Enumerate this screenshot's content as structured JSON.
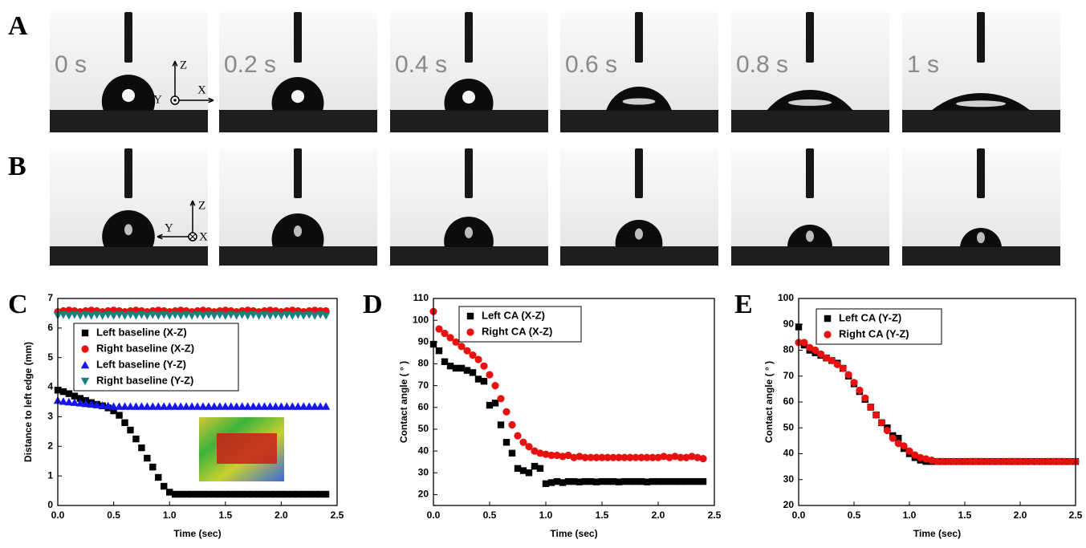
{
  "panel_labels": [
    "A",
    "B",
    "C",
    "D",
    "E"
  ],
  "photos": {
    "times": [
      "0 s",
      "0.2 s",
      "0.4 s",
      "0.6 s",
      "0.8 s",
      "1 s"
    ],
    "axes_a": [
      "Z",
      "X",
      "Y"
    ],
    "axes_b": [
      "Z",
      "Y",
      "X"
    ]
  },
  "chart_data": [
    {
      "type": "scatter",
      "x_label": "Time (sec)",
      "y_label": "Distance to left edge (mm)",
      "xlim": [
        0,
        2.5
      ],
      "ylim": [
        0,
        7
      ],
      "xticks": [
        {
          "value": 0,
          "label": "0.0"
        },
        0.5,
        {
          "value": 1,
          "label": "1.0"
        },
        1.5,
        {
          "value": 2,
          "label": "2.0"
        },
        2.5
      ],
      "yticks": [
        0,
        1,
        2,
        3,
        4,
        5,
        6,
        7
      ],
      "legend": "upper left",
      "x": [
        0,
        0.05,
        0.1,
        0.15,
        0.2,
        0.25,
        0.3,
        0.35,
        0.4,
        0.45,
        0.5,
        0.55,
        0.6,
        0.65,
        0.7,
        0.75,
        0.8,
        0.85,
        0.9,
        0.95,
        1,
        1.05,
        1.1,
        1.15,
        1.2,
        1.25,
        1.3,
        1.35,
        1.4,
        1.45,
        1.5,
        1.55,
        1.6,
        1.65,
        1.7,
        1.75,
        1.8,
        1.85,
        1.9,
        1.95,
        2,
        2.05,
        2.1,
        2.15,
        2.2,
        2.25,
        2.3,
        2.35,
        2.4
      ],
      "series": [
        {
          "name": "Left baseline (X-Z)",
          "color": "#000000",
          "marker": "square",
          "values": [
            3.9,
            3.85,
            3.78,
            3.7,
            3.62,
            3.55,
            3.48,
            3.42,
            3.37,
            3.3,
            3.2,
            3.05,
            2.8,
            2.55,
            2.25,
            1.95,
            1.6,
            1.3,
            0.95,
            0.65,
            0.45,
            0.38,
            0.38,
            0.38,
            0.38,
            0.38,
            0.38,
            0.38,
            0.38,
            0.38,
            0.38,
            0.38,
            0.38,
            0.38,
            0.38,
            0.38,
            0.38,
            0.38,
            0.38,
            0.38,
            0.38,
            0.38,
            0.38,
            0.38,
            0.38,
            0.38,
            0.38,
            0.38,
            0.38
          ]
        },
        {
          "name": "Right baseline (X-Z)",
          "color": "#e8110f",
          "marker": "circle",
          "values": [
            6.55,
            6.58,
            6.6,
            6.58,
            6.55,
            6.58,
            6.6,
            6.58,
            6.55,
            6.58,
            6.6,
            6.58,
            6.55,
            6.58,
            6.6,
            6.58,
            6.55,
            6.58,
            6.6,
            6.58,
            6.55,
            6.58,
            6.6,
            6.58,
            6.55,
            6.58,
            6.6,
            6.58,
            6.55,
            6.58,
            6.6,
            6.58,
            6.55,
            6.58,
            6.6,
            6.58,
            6.55,
            6.58,
            6.6,
            6.58,
            6.55,
            6.58,
            6.6,
            6.58,
            6.55,
            6.58,
            6.6,
            6.58,
            6.58
          ]
        },
        {
          "name": "Left baseline (Y-Z)",
          "color": "#1515f0",
          "marker": "triangle-up",
          "values": [
            3.55,
            3.52,
            3.5,
            3.48,
            3.46,
            3.44,
            3.42,
            3.4,
            3.38,
            3.37,
            3.35,
            3.35,
            3.35,
            3.35,
            3.35,
            3.35,
            3.35,
            3.35,
            3.35,
            3.35,
            3.35,
            3.35,
            3.35,
            3.35,
            3.35,
            3.35,
            3.35,
            3.35,
            3.35,
            3.35,
            3.35,
            3.35,
            3.35,
            3.35,
            3.35,
            3.35,
            3.35,
            3.35,
            3.35,
            3.35,
            3.35,
            3.35,
            3.35,
            3.35,
            3.35,
            3.35,
            3.35,
            3.35,
            3.35
          ]
        },
        {
          "name": "Right baseline (Y-Z)",
          "color": "#1a8080",
          "marker": "triangle-down",
          "values": [
            6.42,
            6.45,
            6.42,
            6.45,
            6.42,
            6.45,
            6.42,
            6.45,
            6.42,
            6.45,
            6.42,
            6.45,
            6.42,
            6.45,
            6.42,
            6.45,
            6.42,
            6.45,
            6.42,
            6.45,
            6.42,
            6.45,
            6.42,
            6.45,
            6.42,
            6.45,
            6.42,
            6.45,
            6.42,
            6.45,
            6.42,
            6.45,
            6.42,
            6.45,
            6.42,
            6.45,
            6.42,
            6.45,
            6.42,
            6.45,
            6.42,
            6.45,
            6.42,
            6.45,
            6.42,
            6.45,
            6.42,
            6.45,
            6.42
          ]
        }
      ]
    },
    {
      "type": "scatter",
      "x_label": "Time (sec)",
      "y_label": "Contact angle ( ° )",
      "xlim": [
        0,
        2.5
      ],
      "ylim": [
        15,
        110
      ],
      "xticks": [
        {
          "value": 0,
          "label": "0.0"
        },
        0.5,
        {
          "value": 1,
          "label": "1.0"
        },
        1.5,
        {
          "value": 2,
          "label": "2.0"
        },
        2.5
      ],
      "yticks": [
        20,
        30,
        40,
        50,
        60,
        70,
        80,
        90,
        100,
        110
      ],
      "legend": "upper left",
      "x": [
        0,
        0.05,
        0.1,
        0.15,
        0.2,
        0.25,
        0.3,
        0.35,
        0.4,
        0.45,
        0.5,
        0.55,
        0.6,
        0.65,
        0.7,
        0.75,
        0.8,
        0.85,
        0.9,
        0.95,
        1,
        1.05,
        1.1,
        1.15,
        1.2,
        1.25,
        1.3,
        1.35,
        1.4,
        1.45,
        1.5,
        1.55,
        1.6,
        1.65,
        1.7,
        1.75,
        1.8,
        1.85,
        1.9,
        1.95,
        2,
        2.05,
        2.1,
        2.15,
        2.2,
        2.25,
        2.3,
        2.35,
        2.4
      ],
      "series": [
        {
          "name": "Left CA (X-Z)",
          "color": "#000000",
          "marker": "square",
          "values": [
            89,
            86,
            81,
            79,
            78,
            78,
            77,
            76,
            73,
            72,
            61,
            62,
            52,
            44,
            39,
            32,
            31,
            30,
            33,
            32,
            25,
            25.5,
            26,
            25.5,
            26,
            26,
            25.8,
            26,
            26,
            25.8,
            26,
            26,
            26,
            25.8,
            26,
            26,
            26,
            26,
            25.8,
            26,
            26,
            26,
            26,
            26,
            26,
            26,
            26,
            26,
            26
          ]
        },
        {
          "name": "Right CA (X-Z)",
          "color": "#e8110f",
          "marker": "circle",
          "values": [
            104,
            96,
            94,
            92,
            90,
            88,
            86,
            84,
            82,
            79,
            75,
            70,
            64,
            58,
            52,
            47,
            44,
            42,
            40,
            39,
            38.5,
            38,
            38,
            37.5,
            38,
            37,
            37.5,
            37,
            37,
            37,
            37,
            37,
            37,
            37,
            37,
            37,
            37,
            37,
            37,
            37,
            37,
            37.5,
            37,
            37.5,
            37,
            37,
            37.5,
            37,
            36.5
          ]
        }
      ]
    },
    {
      "type": "scatter",
      "x_label": "Time (sec)",
      "y_label": "Contact angle ( ° )",
      "xlim": [
        0,
        2.5
      ],
      "ylim": [
        20,
        100
      ],
      "xticks": [
        {
          "value": 0,
          "label": "0.0"
        },
        0.5,
        {
          "value": 1,
          "label": "1.0"
        },
        1.5,
        {
          "value": 2,
          "label": "2.0"
        },
        2.5
      ],
      "yticks": [
        20,
        30,
        40,
        50,
        60,
        70,
        80,
        90,
        100
      ],
      "legend": "upper left",
      "x": [
        0,
        0.05,
        0.1,
        0.15,
        0.2,
        0.25,
        0.3,
        0.35,
        0.4,
        0.45,
        0.5,
        0.55,
        0.6,
        0.65,
        0.7,
        0.75,
        0.8,
        0.85,
        0.9,
        0.95,
        1,
        1.05,
        1.1,
        1.15,
        1.2,
        1.25,
        1.3,
        1.35,
        1.4,
        1.45,
        1.5,
        1.55,
        1.6,
        1.65,
        1.7,
        1.75,
        1.8,
        1.85,
        1.9,
        1.95,
        2,
        2.05,
        2.1,
        2.15,
        2.2,
        2.25,
        2.3,
        2.35,
        2.4,
        2.45,
        2.5
      ],
      "series": [
        {
          "name": "Left CA (Y-Z)",
          "color": "#000000",
          "marker": "square",
          "values": [
            89,
            82,
            80,
            79,
            78,
            77,
            76,
            75,
            73,
            70,
            67,
            64,
            61,
            58,
            55,
            52,
            50,
            47,
            46,
            42,
            40,
            38.5,
            37.5,
            37,
            37,
            37,
            37,
            37,
            37,
            37,
            37,
            37,
            37,
            37,
            37,
            37,
            37,
            37,
            37,
            37,
            37,
            37,
            37,
            37,
            37,
            37,
            37,
            37,
            37,
            37,
            37
          ]
        },
        {
          "name": "Right CA (Y-Z)",
          "color": "#e8110f",
          "marker": "circle",
          "values": [
            83,
            83,
            81,
            80,
            78.5,
            77,
            76,
            74.5,
            73,
            70.5,
            67.5,
            64.5,
            61.5,
            58,
            55,
            52,
            49,
            46,
            44,
            43,
            41,
            39.5,
            38.5,
            38,
            37.5,
            37,
            37,
            37,
            37,
            37,
            37,
            37,
            37,
            37,
            37,
            37,
            37,
            37,
            37,
            37,
            37,
            37,
            37,
            37,
            37,
            37,
            37,
            37,
            37,
            37,
            37
          ]
        }
      ]
    }
  ]
}
